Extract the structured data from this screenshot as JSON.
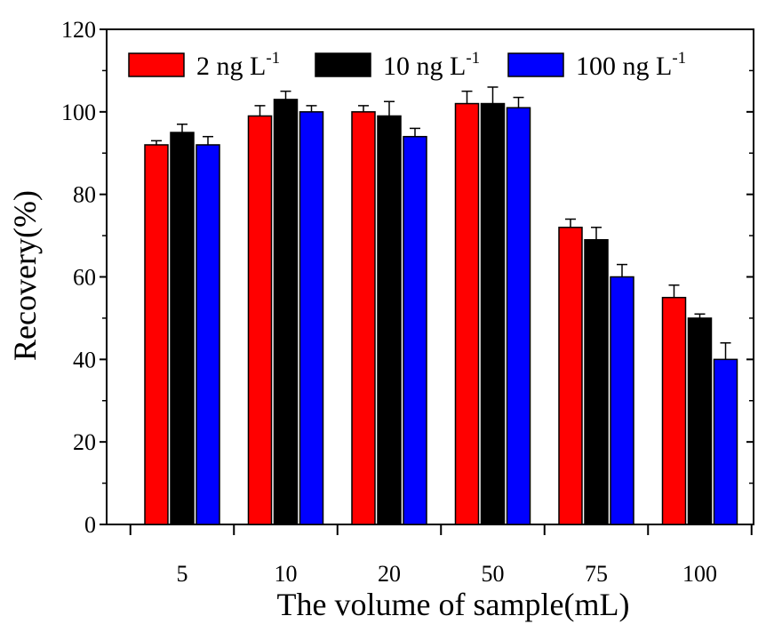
{
  "chart_data": {
    "type": "bar",
    "title": "",
    "xlabel": "The volume of sample(mL)",
    "ylabel": "Recovery(%)",
    "categories": [
      "5",
      "10",
      "20",
      "50",
      "75",
      "100"
    ],
    "ylim": [
      0,
      120
    ],
    "yticks": [
      "0",
      "20",
      "40",
      "60",
      "80",
      "100",
      "120"
    ],
    "legend_position": "top",
    "series": [
      {
        "name": "2 ng L",
        "name_sup": "-1",
        "color": "#ff0000",
        "values": [
          92,
          99,
          100,
          102,
          72,
          55
        ],
        "errors": [
          1,
          2.5,
          1.5,
          3,
          2,
          3
        ]
      },
      {
        "name": "10 ng L",
        "name_sup": "-1",
        "color": "#000000",
        "values": [
          95,
          103,
          99,
          102,
          69,
          50
        ],
        "errors": [
          2,
          2,
          3.5,
          4,
          3,
          1
        ]
      },
      {
        "name": "100 ng L",
        "name_sup": "-1",
        "color": "#0000ff",
        "values": [
          92,
          100,
          94,
          101,
          60,
          40
        ],
        "errors": [
          2,
          1.5,
          2,
          2.5,
          3,
          4
        ]
      }
    ]
  }
}
